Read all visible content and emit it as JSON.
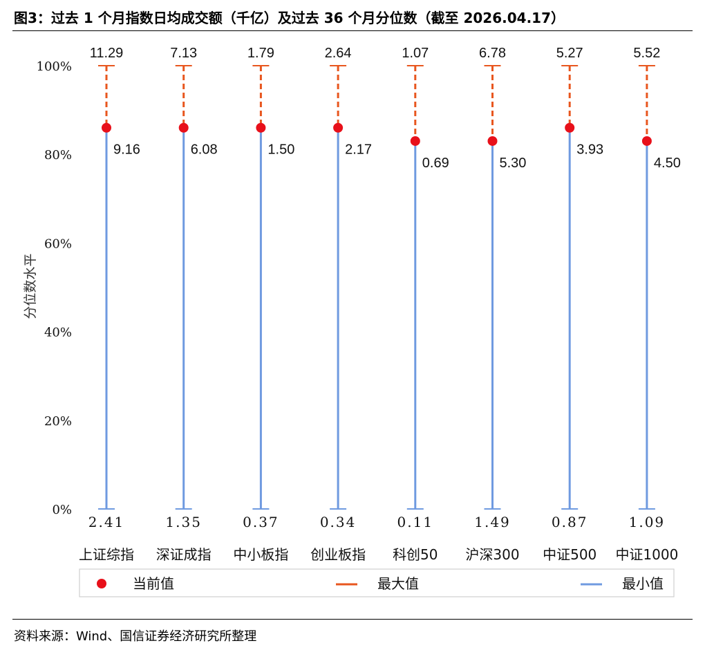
{
  "title": "图3：过去 1 个月指数日均成交额（千亿）及过去 36 个月分位数（截至 2026.04.17）",
  "source": "资料来源：Wind、国信证券经济研究所整理",
  "chart_data": {
    "type": "range_dot",
    "ylabel": "分位数水平",
    "ylim": [
      0,
      100
    ],
    "y_ticks": [
      "0%",
      "20%",
      "40%",
      "60%",
      "80%",
      "100%"
    ],
    "y_tick_values": [
      0,
      20,
      40,
      60,
      80,
      100
    ],
    "categories": [
      "上证综指",
      "深证成指",
      "中小板指",
      "创业板指",
      "科创50",
      "沪深300",
      "中证500",
      "中证1000"
    ],
    "series": [
      {
        "name": "当前值",
        "percentile": [
          86,
          86,
          86,
          86,
          83,
          83,
          86,
          83
        ],
        "labels": [
          "9.16",
          "6.08",
          "1.50",
          "2.17",
          "0.69",
          "5.30",
          "3.93",
          "4.50"
        ]
      },
      {
        "name": "最大值",
        "percentile": [
          100,
          100,
          100,
          100,
          100,
          100,
          100,
          100
        ],
        "labels": [
          "11.29",
          "7.13",
          "1.79",
          "2.64",
          "1.07",
          "6.78",
          "5.27",
          "5.52"
        ]
      },
      {
        "name": "最小值",
        "percentile": [
          0,
          0,
          0,
          0,
          0,
          0,
          0,
          0
        ],
        "labels": [
          "2.41",
          "1.35",
          "0.37",
          "0.34",
          "0.11",
          "1.49",
          "0.87",
          "1.09"
        ]
      }
    ],
    "colors": {
      "current": "#e8101a",
      "max": "#e8561e",
      "min": "#6f9ae0"
    },
    "legend": [
      "当前值",
      "最大值",
      "最小值"
    ],
    "legend_position": "bottom"
  }
}
